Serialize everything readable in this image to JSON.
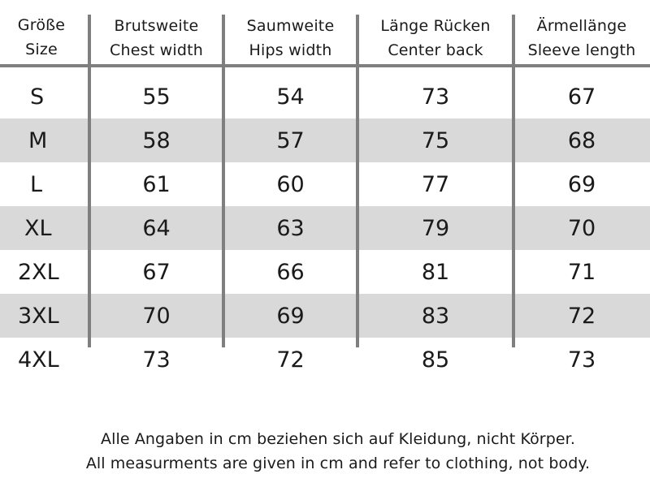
{
  "chart_data": {
    "type": "table",
    "columns": [
      {
        "line1": "Größe",
        "line2": "Size"
      },
      {
        "line1": "Brutsweite",
        "line2": "Chest width"
      },
      {
        "line1": "Saumweite",
        "line2": "Hips width"
      },
      {
        "line1": "Länge Rücken",
        "line2": "Center back"
      },
      {
        "line1": "Ärmellänge",
        "line2": "Sleeve length"
      }
    ],
    "rows": [
      [
        "S",
        "55",
        "54",
        "73",
        "67"
      ],
      [
        "M",
        "58",
        "57",
        "75",
        "68"
      ],
      [
        "L",
        "61",
        "60",
        "77",
        "69"
      ],
      [
        "XL",
        "64",
        "63",
        "79",
        "70"
      ],
      [
        "2XL",
        "67",
        "66",
        "81",
        "71"
      ],
      [
        "3XL",
        "70",
        "69",
        "83",
        "72"
      ],
      [
        "4XL",
        "73",
        "72",
        "85",
        "73"
      ]
    ],
    "row_shading": "alternating grey rows (M, XL, 3XL)",
    "colors": {
      "shade": "#d9d9d9",
      "rule": "#7f7f7f",
      "text": "#1a1a1a"
    }
  },
  "notes": {
    "de": "Alle Angaben in cm beziehen sich auf Kleidung, nicht Körper.",
    "en": "All measurments are given in cm and refer to clothing, not body."
  }
}
